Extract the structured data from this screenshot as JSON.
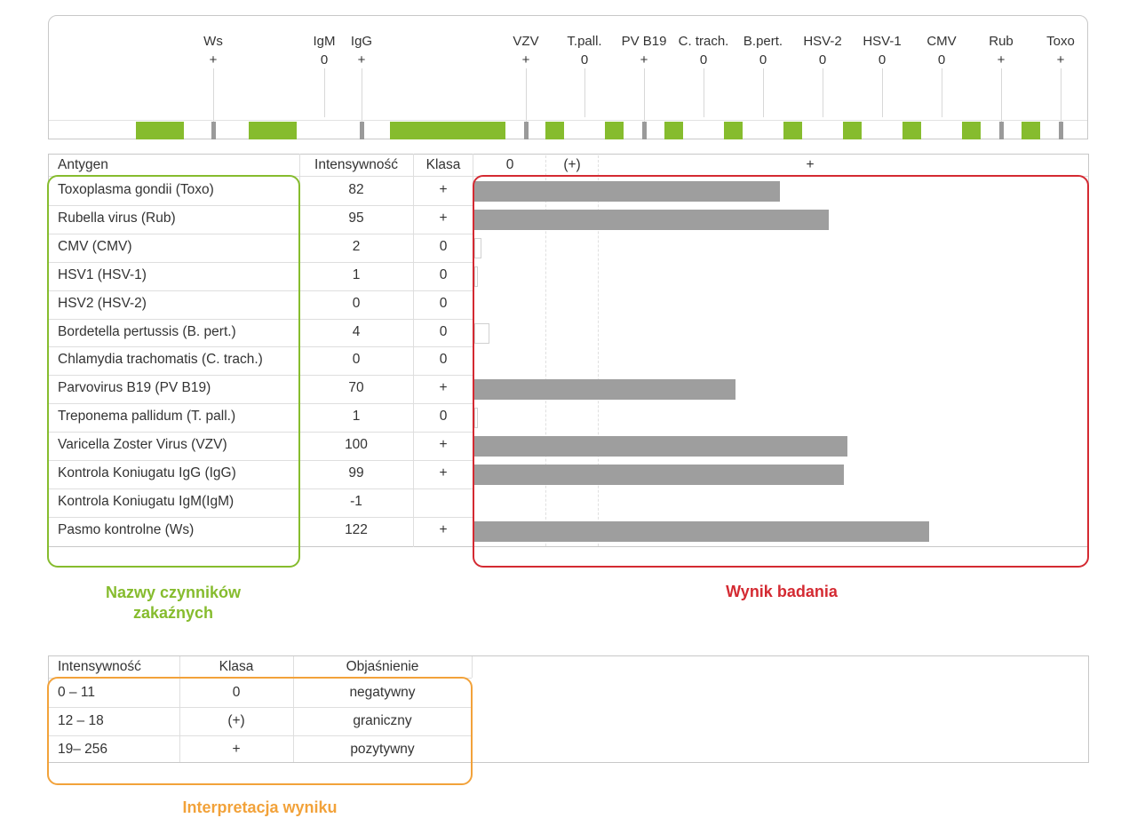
{
  "strip": {
    "markers": [
      {
        "label": "Ws",
        "value": "+"
      },
      {
        "label": "IgM",
        "value": "0"
      },
      {
        "label": "IgG",
        "value": "+"
      },
      {
        "label": "VZV",
        "value": "+"
      },
      {
        "label": "T.pall.",
        "value": "0"
      },
      {
        "label": "PV B19",
        "value": "+"
      },
      {
        "label": "C. trach.",
        "value": "0"
      },
      {
        "label": "B.pert.",
        "value": "0"
      },
      {
        "label": "HSV-2",
        "value": "0"
      },
      {
        "label": "HSV-1",
        "value": "0"
      },
      {
        "label": "CMV",
        "value": "0"
      },
      {
        "label": "Rub",
        "value": "+"
      },
      {
        "label": "Toxo",
        "value": "+"
      }
    ]
  },
  "results": {
    "headers": {
      "antigen": "Antygen",
      "intensity": "Intensywność",
      "klasa": "Klasa"
    },
    "scale": {
      "zero": "0",
      "borderline": "(+)",
      "positive": "+"
    },
    "rows": [
      {
        "antigen": "Toxoplasma gondii (Toxo)",
        "intensity": "82",
        "klasa": "+",
        "value": 82
      },
      {
        "antigen": "Rubella virus (Rub)",
        "intensity": "95",
        "klasa": "+",
        "value": 95
      },
      {
        "antigen": "CMV (CMV)",
        "intensity": "2",
        "klasa": "0",
        "value": 2
      },
      {
        "antigen": "HSV1 (HSV-1)",
        "intensity": "1",
        "klasa": "0",
        "value": 1
      },
      {
        "antigen": "HSV2 (HSV-2)",
        "intensity": "0",
        "klasa": "0",
        "value": 0
      },
      {
        "antigen": "Bordetella pertussis (B. pert.)",
        "intensity": "4",
        "klasa": "0",
        "value": 4
      },
      {
        "antigen": "Chlamydia trachomatis (C. trach.)",
        "intensity": "0",
        "klasa": "0",
        "value": 0
      },
      {
        "antigen": "Parvovirus B19 (PV B19)",
        "intensity": "70",
        "klasa": "+",
        "value": 70
      },
      {
        "antigen": "Treponema pallidum (T. pall.)",
        "intensity": "1",
        "klasa": "0",
        "value": 1
      },
      {
        "antigen": "Varicella Zoster Virus (VZV)",
        "intensity": "100",
        "klasa": "+",
        "value": 100
      },
      {
        "antigen": "Kontrola Koniugatu IgG (IgG)",
        "intensity": "99",
        "klasa": "+",
        "value": 99
      },
      {
        "antigen": "Kontrola Koniugatu IgM(IgM)",
        "intensity": "-1",
        "klasa": "",
        "value": -1
      },
      {
        "antigen": "Pasmo kontrolne (Ws)",
        "intensity": "122",
        "klasa": "+",
        "value": 122
      }
    ]
  },
  "captions": {
    "names": "Nazwy czynników zakaźnych",
    "result": "Wynik badania",
    "interpretation": "Interpretacja wyniku"
  },
  "legend": {
    "headers": {
      "intensity": "Intensywność",
      "klasa": "Klasa",
      "explanation": "Objaśnienie"
    },
    "rows": [
      {
        "range": "0 – 11",
        "klasa": "0",
        "explanation": "negatywny"
      },
      {
        "range": "12 – 18",
        "klasa": "(+)",
        "explanation": "graniczny"
      },
      {
        "range": "19– 256",
        "klasa": "+",
        "explanation": "pozytywny"
      }
    ]
  },
  "colors": {
    "green": "#86bc2e",
    "gray_band": "#9a9a9a",
    "bar": "#9e9e9e",
    "red": "#d42a32",
    "orange": "#f2a23a"
  }
}
